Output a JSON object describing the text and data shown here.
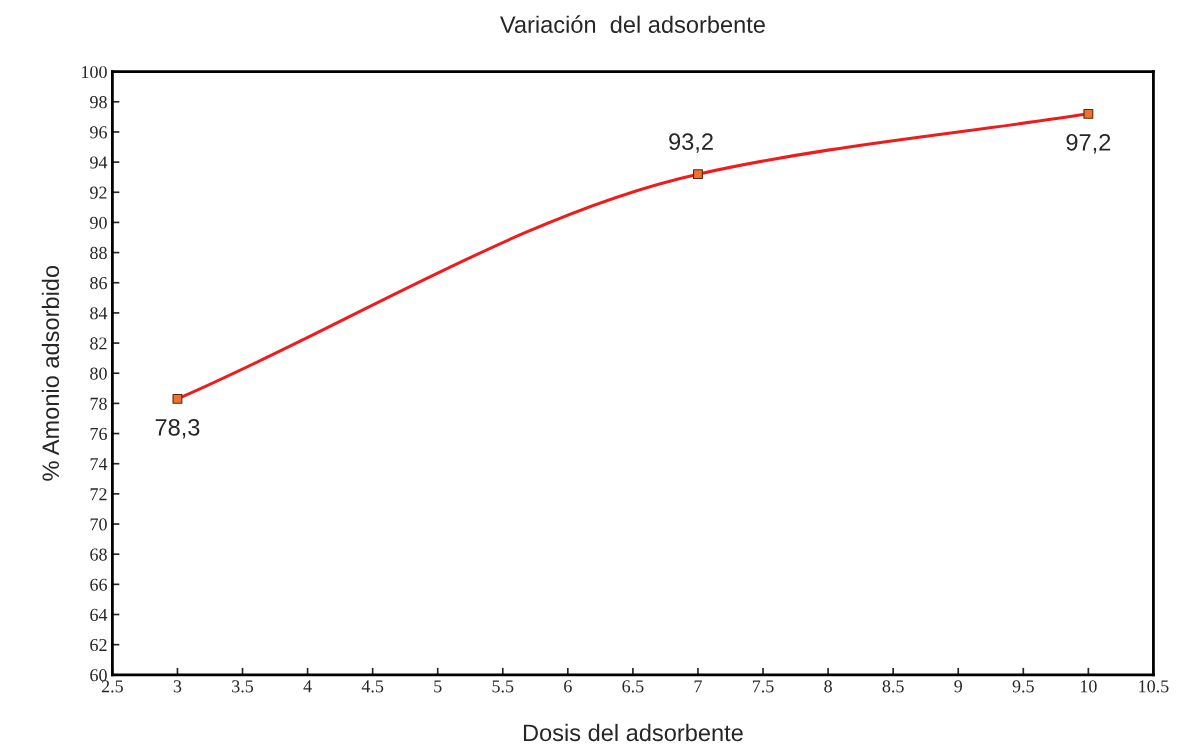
{
  "chart_data": {
    "type": "line",
    "title": "Variación  del adsorbente",
    "xlabel": "Dosis del adsorbente",
    "ylabel": "% Amonio adsorbido",
    "x": [
      3,
      7,
      10
    ],
    "series": [
      {
        "color": "#ee1c1c",
        "values": [
          78.3,
          93.2,
          97.2
        ],
        "value_labels": [
          "78,3",
          "93,2",
          "97,2"
        ]
      }
    ],
    "marker": "square",
    "line_style": "solid",
    "grid": false,
    "legend": false,
    "xlim": [
      2.5,
      10.5
    ],
    "xticks": [
      2.5,
      3,
      3.5,
      4,
      4.5,
      5,
      5.5,
      6,
      6.5,
      7,
      7.5,
      8,
      8.5,
      9,
      9.5,
      10,
      10.5
    ],
    "ylim": [
      60,
      100
    ],
    "yticks": [
      60,
      62,
      64,
      66,
      68,
      70,
      72,
      74,
      76,
      78,
      80,
      82,
      84,
      86,
      88,
      90,
      92,
      94,
      96,
      98,
      100
    ]
  }
}
